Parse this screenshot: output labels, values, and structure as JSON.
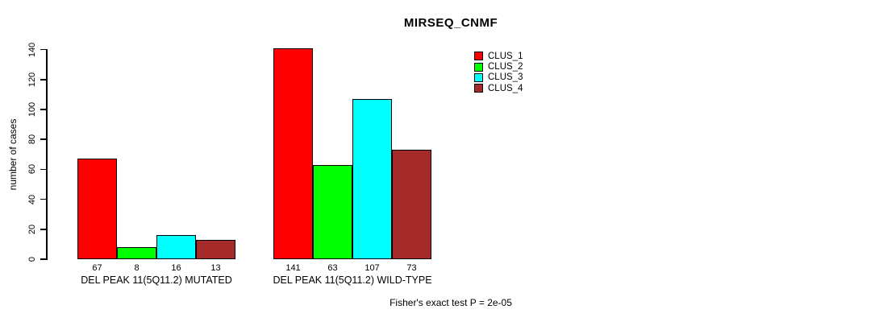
{
  "chart_data": {
    "type": "bar",
    "title": "MIRSEQ_CNMF",
    "ylabel": "number of cases",
    "xlabel": "",
    "ylim": [
      0,
      140
    ],
    "yticks": [
      0,
      20,
      40,
      60,
      80,
      100,
      120,
      140
    ],
    "grid": false,
    "legend_position": "right-top",
    "background_color": "#ffffff",
    "axis_color": "#000000",
    "categories": [
      "DEL PEAK 11(5Q11.2) MUTATED",
      "DEL PEAK 11(5Q11.2) WILD-TYPE"
    ],
    "groups": [
      {
        "label": "DEL PEAK 11(5Q11.2) MUTATED",
        "values": [
          67,
          8,
          16,
          13
        ]
      },
      {
        "label": "DEL PEAK 11(5Q11.2) WILD-TYPE",
        "values": [
          141,
          63,
          107,
          73
        ]
      }
    ],
    "series": [
      {
        "name": "CLUS_1",
        "color": "#ff0000"
      },
      {
        "name": "CLUS_2",
        "color": "#00ff00"
      },
      {
        "name": "CLUS_3",
        "color": "#00ffff"
      },
      {
        "name": "CLUS_4",
        "color": "#a52a2a"
      }
    ],
    "bar_value_labels": [
      67,
      8,
      16,
      13,
      141,
      63,
      107,
      73
    ],
    "annotation": "Fisher's exact test P = 2e-05"
  }
}
